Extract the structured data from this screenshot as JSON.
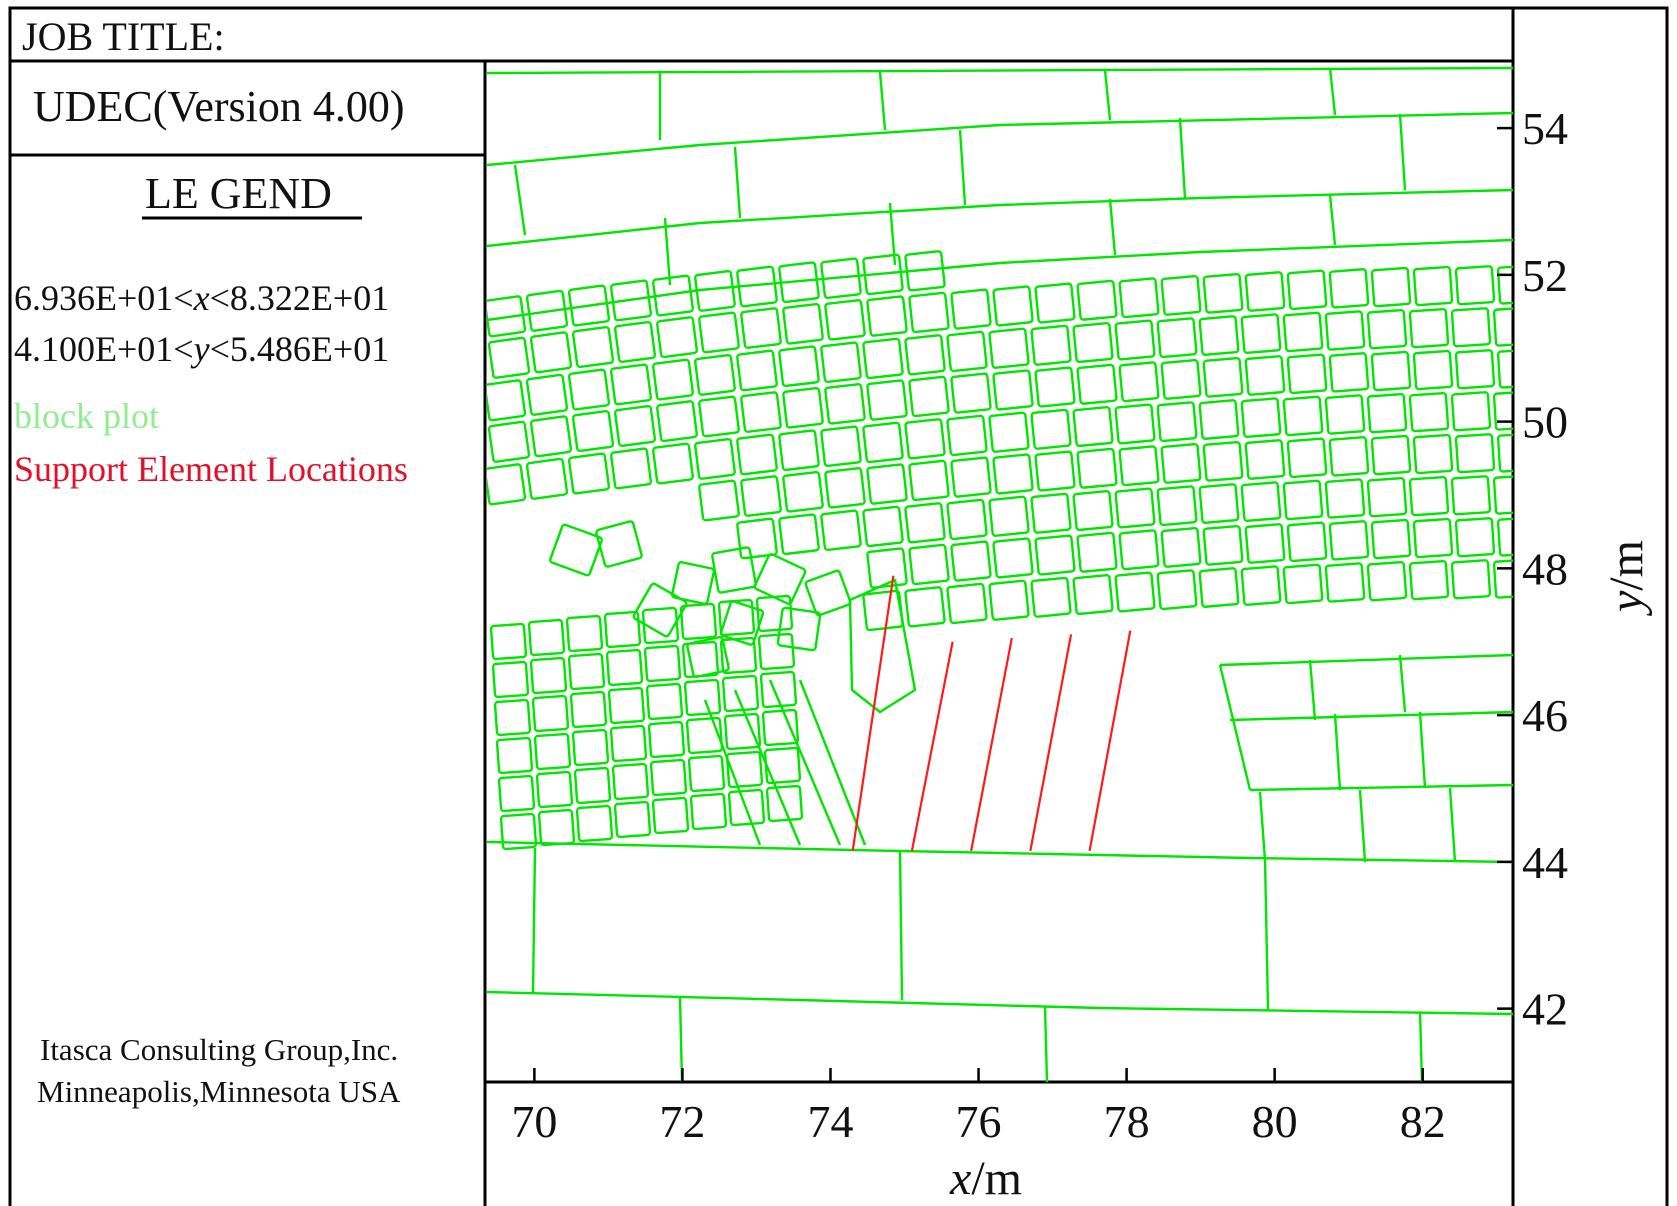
{
  "header": {
    "job_title": "JOB TITLE:"
  },
  "program": {
    "version_label": "UDEC(Version 4.00)"
  },
  "legend": {
    "title": "LE GEND",
    "x_range": {
      "lower": "6.936E+01<",
      "var": "x",
      "upper": "<8.322E+01"
    },
    "y_range": {
      "lower": "4.100E+01<",
      "var": "y",
      "upper": "<5.486E+01"
    },
    "block_plot_label": "block plot",
    "support_label": "Support Element Locations",
    "colors": {
      "block": "#00e600",
      "support": "#ff1a1a",
      "block_text": "#90ee90",
      "support_text": "#e0112b"
    }
  },
  "footer": {
    "company": "Itasca Consulting Group,Inc.",
    "location": "Minneapolis,Minnesota USA"
  },
  "axes": {
    "x_label_var": "x",
    "x_label_unit": "/m",
    "y_label_var": "y",
    "y_label_unit": "/m",
    "xlim": [
      69.36,
      83.22
    ],
    "ylim": [
      41.0,
      54.86
    ],
    "x_ticks": [
      "70",
      "72",
      "74",
      "76",
      "78",
      "80",
      "82"
    ],
    "y_ticks": [
      "42",
      "44",
      "46",
      "48",
      "50",
      "52",
      "54"
    ]
  },
  "support_elements": [
    {
      "x1": 74.3,
      "y1": 44.15,
      "x2": 74.85,
      "y2": 47.9
    },
    {
      "x1": 75.1,
      "y1": 44.15,
      "x2": 75.65,
      "y2": 47.0
    },
    {
      "x1": 75.9,
      "y1": 44.15,
      "x2": 76.45,
      "y2": 47.05
    },
    {
      "x1": 76.7,
      "y1": 44.15,
      "x2": 77.25,
      "y2": 47.1
    },
    {
      "x1": 77.5,
      "y1": 44.15,
      "x2": 78.05,
      "y2": 47.15
    }
  ]
}
